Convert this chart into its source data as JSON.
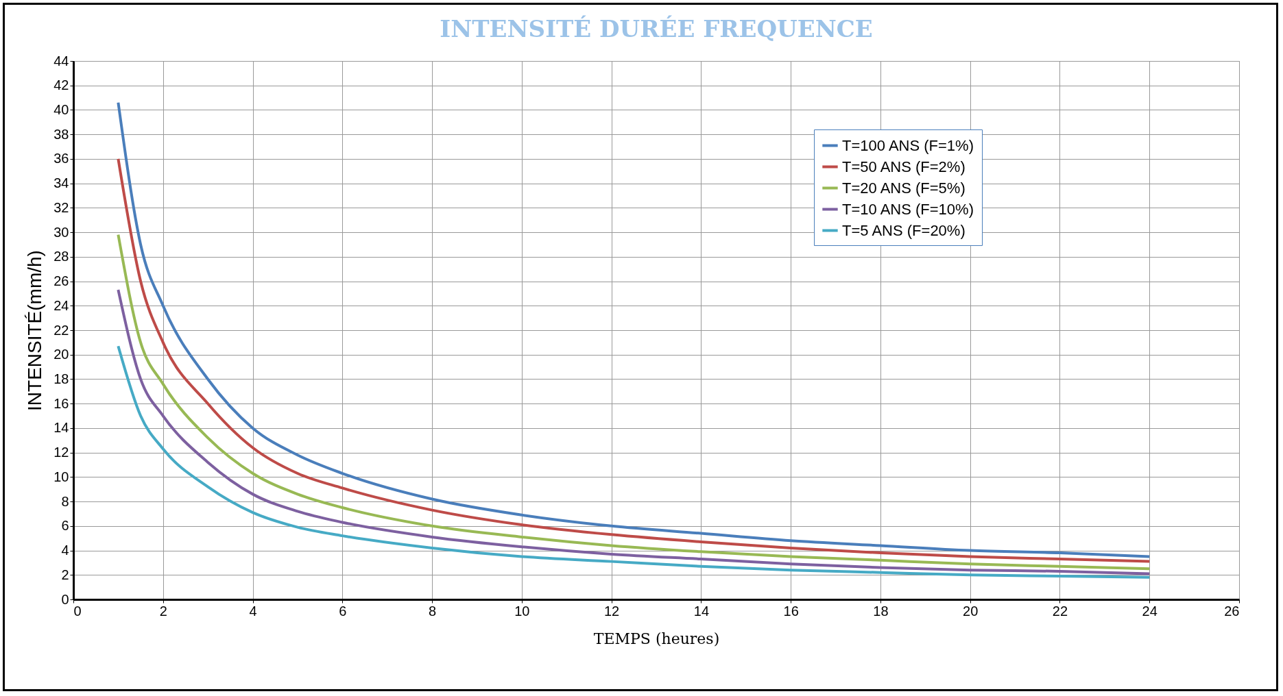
{
  "chart_data": {
    "type": "line",
    "title": "INTENSITÉ DURÉE FREQUENCE",
    "xlabel": "TEMPS (heures)",
    "ylabel": "INTENSITÉ(mm/h)",
    "x": [
      1,
      1.5,
      2,
      3,
      4,
      5,
      6,
      8,
      10,
      12,
      14,
      16,
      18,
      20,
      22,
      24
    ],
    "series": [
      {
        "name": "T=100 ANS (F=1%)",
        "color": "#4a7ebb",
        "values": [
          40.6,
          29,
          24,
          18,
          14,
          11.8,
          10.3,
          8.2,
          6.9,
          6.0,
          5.4,
          4.8,
          4.4,
          4.0,
          3.8,
          3.5
        ]
      },
      {
        "name": "T=50 ANS (F=2%)",
        "color": "#be4b48",
        "values": [
          36,
          26,
          21,
          16,
          12.4,
          10.3,
          9.1,
          7.3,
          6.1,
          5.3,
          4.7,
          4.2,
          3.8,
          3.5,
          3.3,
          3.1
        ]
      },
      {
        "name": "T=20 ANS (F=5%)",
        "color": "#98b954",
        "values": [
          29.8,
          21,
          17.6,
          13.2,
          10.3,
          8.6,
          7.5,
          6.0,
          5.1,
          4.4,
          3.9,
          3.5,
          3.2,
          2.9,
          2.7,
          2.5
        ]
      },
      {
        "name": "T=10 ANS (F=10%)",
        "color": "#7d60a0",
        "values": [
          25.3,
          18,
          15,
          11.2,
          8.6,
          7.2,
          6.3,
          5.1,
          4.3,
          3.7,
          3.3,
          2.9,
          2.6,
          2.4,
          2.3,
          2.1
        ]
      },
      {
        "name": "T=5 ANS (F=20%)",
        "color": "#46aac5",
        "values": [
          20.7,
          15,
          12.3,
          9.2,
          7.1,
          5.9,
          5.2,
          4.2,
          3.5,
          3.1,
          2.7,
          2.4,
          2.2,
          2.0,
          1.9,
          1.8
        ]
      }
    ],
    "xlim": [
      0,
      26
    ],
    "xticks": [
      0,
      2,
      4,
      6,
      8,
      10,
      12,
      14,
      16,
      18,
      20,
      22,
      24,
      26
    ],
    "ylim": [
      0,
      44
    ],
    "yticks": [
      0,
      2,
      4,
      6,
      8,
      10,
      12,
      14,
      16,
      18,
      20,
      22,
      24,
      26,
      28,
      30,
      32,
      34,
      36,
      38,
      40,
      42,
      44
    ],
    "grid": true,
    "legend": "top right",
    "line_style": "solid",
    "marker": "none"
  }
}
